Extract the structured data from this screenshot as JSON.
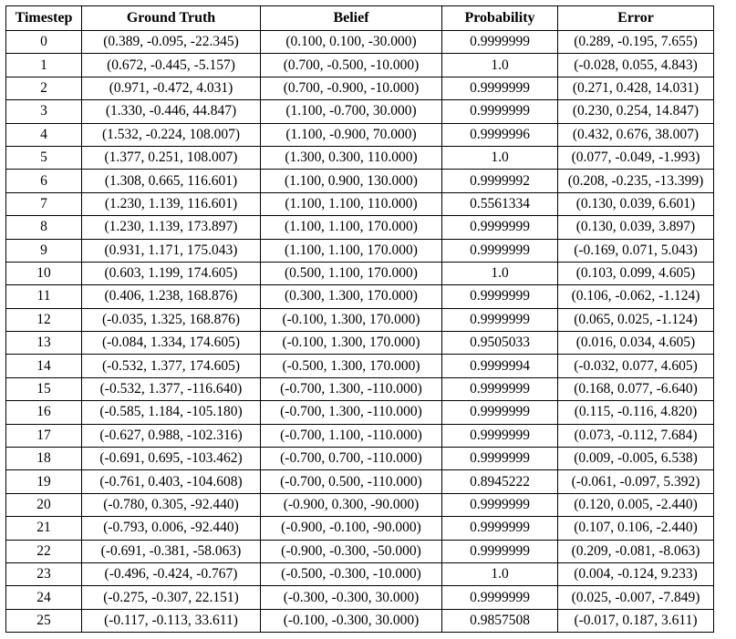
{
  "table": {
    "headers": [
      "Timestep",
      "Ground Truth",
      "Belief",
      "Probability",
      "Error"
    ],
    "rows": [
      [
        "0",
        "(0.389, -0.095, -22.345)",
        "(0.100, 0.100, -30.000)",
        "0.9999999",
        "(0.289, -0.195, 7.655)"
      ],
      [
        "1",
        "(0.672, -0.445, -5.157)",
        "(0.700, -0.500, -10.000)",
        "1.0",
        "(-0.028, 0.055, 4.843)"
      ],
      [
        "2",
        "(0.971, -0.472, 4.031)",
        "(0.700, -0.900, -10.000)",
        "0.9999999",
        "(0.271, 0.428, 14.031)"
      ],
      [
        "3",
        "(1.330, -0.446, 44.847)",
        "(1.100, -0.700, 30.000)",
        "0.9999999",
        "(0.230, 0.254, 14.847)"
      ],
      [
        "4",
        "(1.532, -0.224, 108.007)",
        "(1.100, -0.900, 70.000)",
        "0.9999996",
        "(0.432, 0.676, 38.007)"
      ],
      [
        "5",
        "(1.377, 0.251, 108.007)",
        "(1.300, 0.300, 110.000)",
        "1.0",
        "(0.077, -0.049, -1.993)"
      ],
      [
        "6",
        "(1.308, 0.665, 116.601)",
        "(1.100, 0.900, 130.000)",
        "0.9999992",
        "(0.208, -0.235, -13.399)"
      ],
      [
        "7",
        "(1.230, 1.139, 116.601)",
        "(1.100, 1.100, 110.000)",
        "0.5561334",
        "(0.130, 0.039, 6.601)"
      ],
      [
        "8",
        "(1.230, 1.139, 173.897)",
        "(1.100, 1.100, 170.000)",
        "0.9999999",
        "(0.130, 0.039, 3.897)"
      ],
      [
        "9",
        "(0.931, 1.171, 175.043)",
        "(1.100, 1.100, 170.000)",
        "0.9999999",
        "(-0.169, 0.071, 5.043)"
      ],
      [
        "10",
        "(0.603, 1.199, 174.605)",
        "(0.500, 1.100, 170.000)",
        "1.0",
        "(0.103, 0.099, 4.605)"
      ],
      [
        "11",
        "(0.406, 1.238, 168.876)",
        "(0.300, 1.300, 170.000)",
        "0.9999999",
        "(0.106, -0.062, -1.124)"
      ],
      [
        "12",
        "(-0.035, 1.325, 168.876)",
        "(-0.100, 1.300, 170.000)",
        "0.9999999",
        "(0.065, 0.025, -1.124)"
      ],
      [
        "13",
        "(-0.084, 1.334, 174.605)",
        "(-0.100, 1.300, 170.000)",
        "0.9505033",
        "(0.016, 0.034, 4.605)"
      ],
      [
        "14",
        "(-0.532, 1.377, 174.605)",
        "(-0.500, 1.300, 170.000)",
        "0.9999994",
        "(-0.032, 0.077, 4.605)"
      ],
      [
        "15",
        "(-0.532, 1.377, -116.640)",
        "(-0.700, 1.300, -110.000)",
        "0.9999999",
        "(0.168, 0.077, -6.640)"
      ],
      [
        "16",
        "(-0.585, 1.184, -105.180)",
        "(-0.700, 1.300, -110.000)",
        "0.9999999",
        "(0.115, -0.116, 4.820)"
      ],
      [
        "17",
        "(-0.627, 0.988, -102.316)",
        "(-0.700, 1.100, -110.000)",
        "0.9999999",
        "(0.073, -0.112, 7.684)"
      ],
      [
        "18",
        "(-0.691, 0.695, -103.462)",
        "(-0.700, 0.700, -110.000)",
        "0.9999999",
        "(0.009, -0.005, 6.538)"
      ],
      [
        "19",
        "(-0.761, 0.403, -104.608)",
        "(-0.700, 0.500, -110.000)",
        "0.8945222",
        "(-0.061, -0.097, 5.392)"
      ],
      [
        "20",
        "(-0.780, 0.305, -92.440)",
        "(-0.900, 0.300, -90.000)",
        "0.9999999",
        "(0.120, 0.005, -2.440)"
      ],
      [
        "21",
        "(-0.793, 0.006, -92.440)",
        "(-0.900, -0.100, -90.000)",
        "0.9999999",
        "(0.107, 0.106, -2.440)"
      ],
      [
        "22",
        "(-0.691, -0.381, -58.063)",
        "(-0.900, -0.300, -50.000)",
        "0.9999999",
        "(0.209, -0.081, -8.063)"
      ],
      [
        "23",
        "(-0.496, -0.424, -0.767)",
        "(-0.500, -0.300, -10.000)",
        "1.0",
        "(0.004, -0.124, 9.233)"
      ],
      [
        "24",
        "(-0.275, -0.307, 22.151)",
        "(-0.300, -0.300, 30.000)",
        "0.9999999",
        "(0.025, -0.007, -7.849)"
      ],
      [
        "25",
        "(-0.117, -0.113, 33.611)",
        "(-0.100, -0.300, 30.000)",
        "0.9857508",
        "(-0.017, 0.187, 3.611)"
      ]
    ]
  }
}
